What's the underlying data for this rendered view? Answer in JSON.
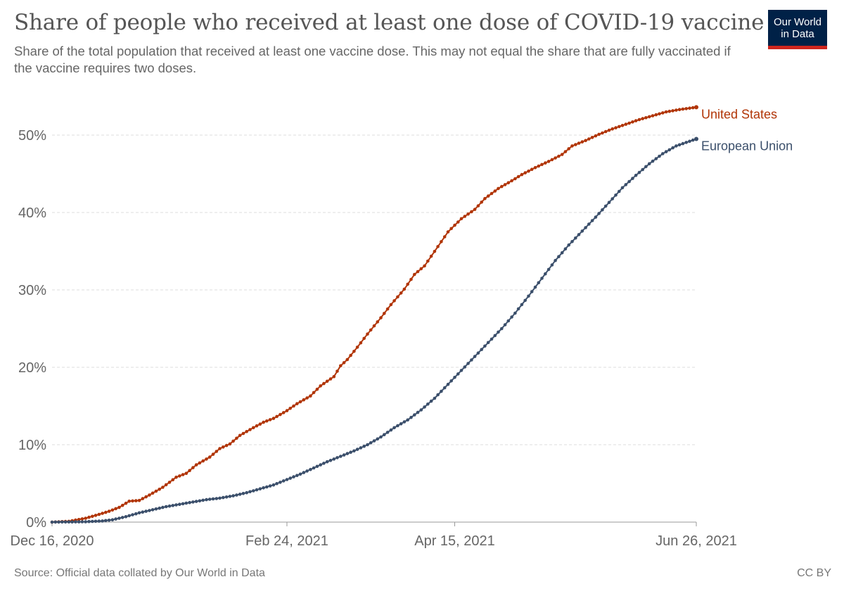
{
  "header": {
    "title": "Share of people who received at least one dose of COVID-19 vaccine",
    "subtitle": "Share of the total population that received at least one vaccine dose. This may not equal the share that are fully vaccinated if the vaccine requires two doses."
  },
  "logo": {
    "line1": "Our World",
    "line2": "in Data"
  },
  "footer": {
    "source": "Source: Official data collated by Our World in Data",
    "license": "CC BY"
  },
  "colors": {
    "united_states": "#b13507",
    "european_union": "#3b4f6b",
    "grid": "#dddddd",
    "axis": "#666666"
  },
  "chart_data": {
    "type": "line",
    "title": "Share of people who received at least one dose of COVID-19 vaccine",
    "xlabel": "",
    "ylabel": "",
    "x_start": "2020-12-16",
    "x_end": "2021-06-26",
    "x_ticks": [
      {
        "day": 0,
        "label": "Dec 16, 2020"
      },
      {
        "day": 70,
        "label": "Feb 24, 2021"
      },
      {
        "day": 120,
        "label": "Apr 15, 2021"
      },
      {
        "day": 192,
        "label": "Jun 26, 2021"
      }
    ],
    "y_ticks": [
      {
        "value": 0,
        "label": "0%"
      },
      {
        "value": 10,
        "label": "10%"
      },
      {
        "value": 20,
        "label": "20%"
      },
      {
        "value": 30,
        "label": "30%"
      },
      {
        "value": 40,
        "label": "40%"
      },
      {
        "value": 50,
        "label": "50%"
      }
    ],
    "xlim": [
      0,
      192
    ],
    "ylim": [
      0,
      55
    ],
    "grid": "horizontal dashed",
    "legend": "inline labels at end of lines",
    "series": [
      {
        "name": "United States",
        "points": [
          [
            0,
            0
          ],
          [
            5,
            0.1
          ],
          [
            10,
            0.5
          ],
          [
            14,
            1.0
          ],
          [
            17,
            1.4
          ],
          [
            20,
            1.9
          ],
          [
            23,
            2.7
          ],
          [
            26,
            2.8
          ],
          [
            29,
            3.5
          ],
          [
            33,
            4.5
          ],
          [
            37,
            5.8
          ],
          [
            40,
            6.3
          ],
          [
            43,
            7.4
          ],
          [
            47,
            8.4
          ],
          [
            50,
            9.5
          ],
          [
            53,
            10.1
          ],
          [
            56,
            11.2
          ],
          [
            60,
            12.2
          ],
          [
            63,
            12.9
          ],
          [
            66,
            13.4
          ],
          [
            70,
            14.4
          ],
          [
            73,
            15.3
          ],
          [
            77,
            16.3
          ],
          [
            80,
            17.6
          ],
          [
            84,
            18.8
          ],
          [
            86,
            20.2
          ],
          [
            88,
            21.0
          ],
          [
            91,
            22.6
          ],
          [
            94,
            24.3
          ],
          [
            98,
            26.4
          ],
          [
            101,
            28.1
          ],
          [
            105,
            30.1
          ],
          [
            108,
            32.0
          ],
          [
            111,
            33.1
          ],
          [
            115,
            35.6
          ],
          [
            118,
            37.5
          ],
          [
            122,
            39.2
          ],
          [
            126,
            40.4
          ],
          [
            129,
            41.8
          ],
          [
            133,
            43.1
          ],
          [
            137,
            44.1
          ],
          [
            140,
            44.9
          ],
          [
            144,
            45.8
          ],
          [
            148,
            46.6
          ],
          [
            152,
            47.5
          ],
          [
            155,
            48.6
          ],
          [
            159,
            49.3
          ],
          [
            163,
            50.1
          ],
          [
            167,
            50.8
          ],
          [
            171,
            51.4
          ],
          [
            175,
            52.0
          ],
          [
            179,
            52.5
          ],
          [
            183,
            53.0
          ],
          [
            187,
            53.3
          ],
          [
            192,
            53.6
          ]
        ]
      },
      {
        "name": "European Union",
        "points": [
          [
            0,
            0
          ],
          [
            10,
            0.05
          ],
          [
            15,
            0.15
          ],
          [
            18,
            0.3
          ],
          [
            22,
            0.7
          ],
          [
            26,
            1.2
          ],
          [
            30,
            1.6
          ],
          [
            34,
            2.0
          ],
          [
            38,
            2.3
          ],
          [
            42,
            2.6
          ],
          [
            46,
            2.9
          ],
          [
            50,
            3.1
          ],
          [
            54,
            3.4
          ],
          [
            58,
            3.8
          ],
          [
            62,
            4.3
          ],
          [
            66,
            4.8
          ],
          [
            70,
            5.5
          ],
          [
            74,
            6.2
          ],
          [
            78,
            7.0
          ],
          [
            82,
            7.8
          ],
          [
            86,
            8.5
          ],
          [
            90,
            9.2
          ],
          [
            94,
            10.0
          ],
          [
            98,
            11.0
          ],
          [
            102,
            12.2
          ],
          [
            106,
            13.2
          ],
          [
            110,
            14.5
          ],
          [
            114,
            16.0
          ],
          [
            118,
            17.8
          ],
          [
            122,
            19.6
          ],
          [
            126,
            21.4
          ],
          [
            130,
            23.2
          ],
          [
            134,
            25.0
          ],
          [
            138,
            27.0
          ],
          [
            142,
            29.2
          ],
          [
            146,
            31.5
          ],
          [
            150,
            33.8
          ],
          [
            154,
            35.8
          ],
          [
            158,
            37.6
          ],
          [
            162,
            39.4
          ],
          [
            166,
            41.3
          ],
          [
            170,
            43.2
          ],
          [
            174,
            44.8
          ],
          [
            178,
            46.3
          ],
          [
            182,
            47.6
          ],
          [
            186,
            48.6
          ],
          [
            190,
            49.2
          ],
          [
            192,
            49.5
          ]
        ]
      }
    ]
  }
}
